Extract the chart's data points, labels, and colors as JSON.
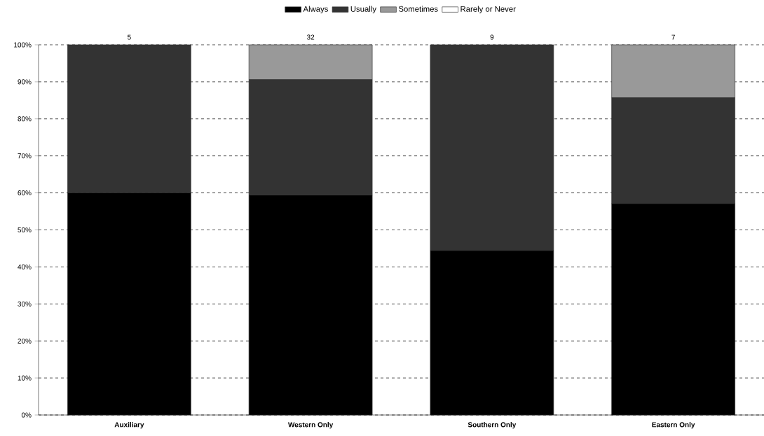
{
  "chart_data": {
    "type": "bar",
    "stacked": true,
    "categories": [
      "Auxiliary",
      "Western Only",
      "Southern Only",
      "Eastern Only"
    ],
    "series": [
      {
        "name": "Always",
        "color": "#000000",
        "values": [
          60,
          59.4,
          44.4,
          57.1
        ]
      },
      {
        "name": "Usually",
        "color": "#333333",
        "values": [
          40,
          31.2,
          55.6,
          28.6
        ]
      },
      {
        "name": "Sometimes",
        "color": "#999999",
        "values": [
          0,
          9.4,
          0,
          14.3
        ]
      },
      {
        "name": "Rarely or Never",
        "color": "#ffffff",
        "values": [
          0,
          0,
          0,
          0
        ]
      }
    ],
    "ylim": [
      0,
      100
    ],
    "yticks": [
      {
        "value": 0,
        "label": "0%"
      },
      {
        "value": 10,
        "label": "10%"
      },
      {
        "value": 20,
        "label": "20%"
      },
      {
        "value": 30,
        "label": "30%"
      },
      {
        "value": 40,
        "label": "40%"
      },
      {
        "value": 50,
        "label": "50%"
      },
      {
        "value": 60,
        "label": "60%"
      },
      {
        "value": 70,
        "label": "70%"
      },
      {
        "value": 80,
        "label": "80%"
      },
      {
        "value": 90,
        "label": "90%"
      },
      {
        "value": 100,
        "label": "100%"
      }
    ],
    "grid": "y",
    "legend": "top",
    "annotations": [
      {
        "text": "5",
        "x": "Auxiliary",
        "y": 100
      },
      {
        "text": "32",
        "x": "Western Only",
        "y": 100
      },
      {
        "text": "9",
        "x": "Southern Only",
        "y": 100
      },
      {
        "text": "7",
        "x": "Eastern Only",
        "y": 100
      }
    ]
  }
}
